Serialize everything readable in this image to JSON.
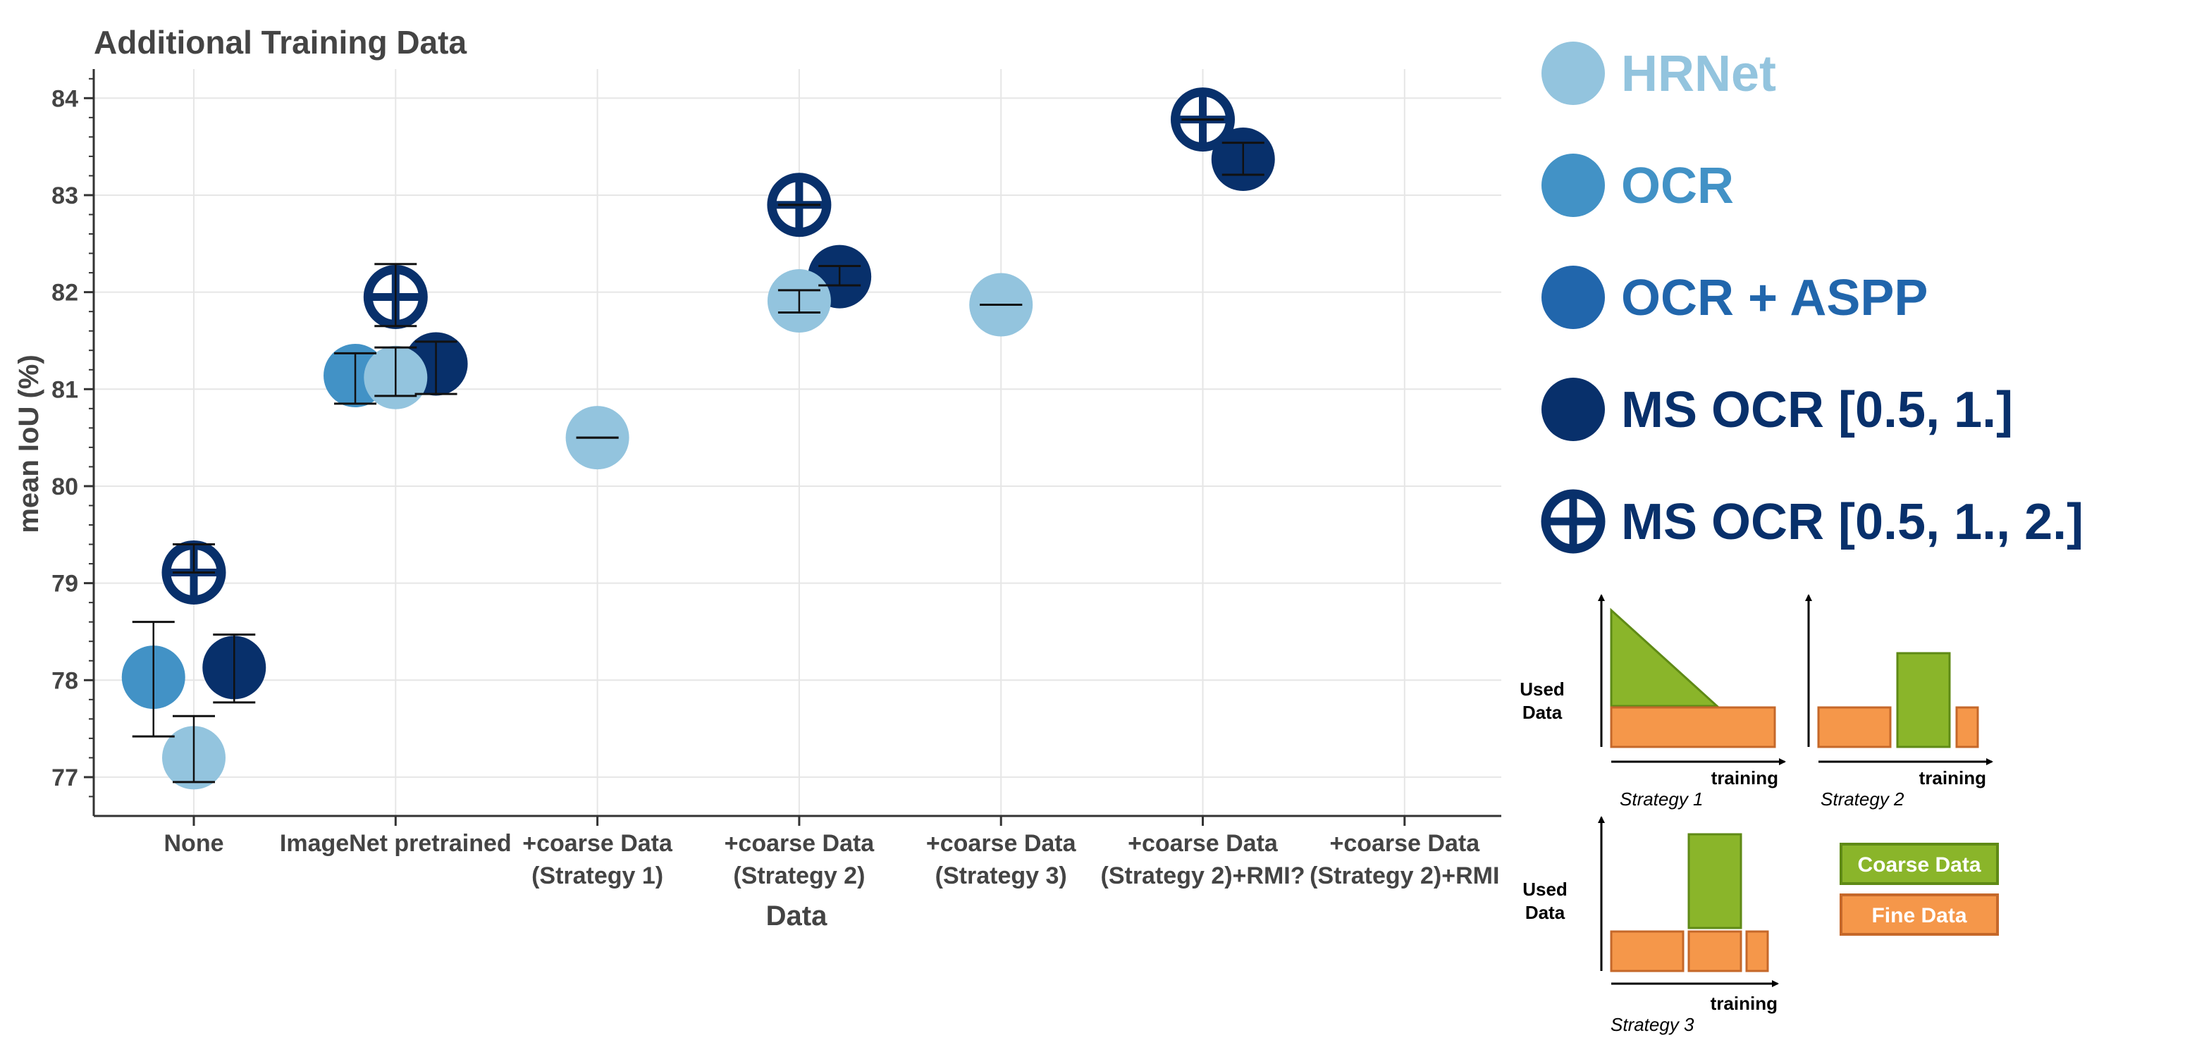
{
  "colors": {
    "hrnet": "#93c4de",
    "ocr": "#4292c6",
    "ocr_aspp": "#2166ac",
    "ms_ocr": "#08306b",
    "coarse": "#8ab52a",
    "coarse_stroke": "#5f8a16",
    "fine": "#f5974a",
    "fine_stroke": "#c5682a"
  },
  "chart_data": {
    "type": "scatter",
    "title": "Additional Training Data",
    "xlabel": "Data",
    "ylabel": "mean IoU (%)",
    "ylim": [
      76.6,
      84.3
    ],
    "yticks": [
      "77",
      "78",
      "79",
      "80",
      "81",
      "82",
      "83",
      "84"
    ],
    "categories": [
      {
        "line1": "None",
        "line2": ""
      },
      {
        "line1": "ImageNet pretrained",
        "line2": ""
      },
      {
        "line1": "+coarse Data",
        "line2": "(Strategy 1)"
      },
      {
        "line1": "+coarse Data",
        "line2": "(Strategy 2)"
      },
      {
        "line1": "+coarse Data",
        "line2": "(Strategy 3)"
      },
      {
        "line1": "+coarse Data",
        "line2": "(Strategy 2)+RMI?"
      },
      {
        "line1": "+coarse Data",
        "line2": "(Strategy 2)+RMI"
      }
    ],
    "series": [
      {
        "name": "HRNet",
        "color_key": "hrnet",
        "marker": "filled",
        "points": [
          {
            "cat": 0,
            "offset": 0.0,
            "y": 77.2,
            "err": [
              76.95,
              77.63
            ]
          },
          {
            "cat": 1,
            "offset": 0.0,
            "y": 81.12,
            "err": [
              80.93,
              81.43
            ]
          },
          {
            "cat": 2,
            "offset": 0.0,
            "y": 80.5,
            "err": [
              80.5,
              80.5
            ]
          },
          {
            "cat": 3,
            "offset": 0.0,
            "y": 81.91,
            "err": [
              81.79,
              82.02
            ]
          },
          {
            "cat": 4,
            "offset": 0.0,
            "y": 81.87,
            "err": [
              81.87,
              81.87
            ]
          }
        ]
      },
      {
        "name": "OCR",
        "color_key": "ocr",
        "marker": "filled",
        "points": [
          {
            "cat": 0,
            "offset": -0.2,
            "y": 78.03,
            "err": [
              77.42,
              78.6
            ]
          },
          {
            "cat": 1,
            "offset": -0.2,
            "y": 81.14,
            "err": [
              80.85,
              81.37
            ]
          }
        ]
      },
      {
        "name": "OCR + ASPP",
        "color_key": "ocr_aspp",
        "marker": "filled",
        "points": []
      },
      {
        "name": "MS OCR [0.5, 1.]",
        "color_key": "ms_ocr",
        "marker": "filled",
        "points": [
          {
            "cat": 0,
            "offset": 0.2,
            "y": 78.13,
            "err": [
              77.77,
              78.47
            ]
          },
          {
            "cat": 1,
            "offset": 0.2,
            "y": 81.26,
            "err": [
              80.95,
              81.49
            ]
          },
          {
            "cat": 3,
            "offset": 0.2,
            "y": 82.16,
            "err": [
              82.07,
              82.27
            ]
          },
          {
            "cat": 5,
            "offset": 0.2,
            "y": 83.37,
            "err": [
              83.21,
              83.54
            ]
          }
        ]
      },
      {
        "name": "MS OCR [0.5, 1., 2.]",
        "color_key": "ms_ocr",
        "marker": "crosshair",
        "points": [
          {
            "cat": 0,
            "offset": 0.0,
            "y": 79.11,
            "err": [
              79.11,
              79.4
            ]
          },
          {
            "cat": 1,
            "offset": 0.0,
            "y": 81.95,
            "err": [
              81.65,
              82.29
            ]
          },
          {
            "cat": 3,
            "offset": 0.0,
            "y": 82.9,
            "err": [
              82.9,
              82.9
            ]
          },
          {
            "cat": 5,
            "offset": 0.0,
            "y": 83.78,
            "err": [
              83.78,
              83.78
            ]
          }
        ]
      }
    ]
  },
  "legend": [
    {
      "label": "HRNet",
      "color_key": "hrnet",
      "marker": "filled"
    },
    {
      "label": "OCR",
      "color_key": "ocr",
      "marker": "filled"
    },
    {
      "label": "OCR + ASPP",
      "color_key": "ocr_aspp",
      "marker": "filled"
    },
    {
      "label": "MS OCR [0.5, 1.]",
      "color_key": "ms_ocr",
      "marker": "filled"
    },
    {
      "label": "MS OCR [0.5, 1., 2.]",
      "color_key": "ms_ocr",
      "marker": "crosshair"
    }
  ],
  "strategies": {
    "used_data_line1": "Used",
    "used_data_line2": "Data",
    "training": "training",
    "strategy1": "Strategy 1",
    "strategy2": "Strategy 2",
    "strategy3": "Strategy 3",
    "coarse_label": "Coarse Data",
    "fine_label": "Fine Data"
  }
}
